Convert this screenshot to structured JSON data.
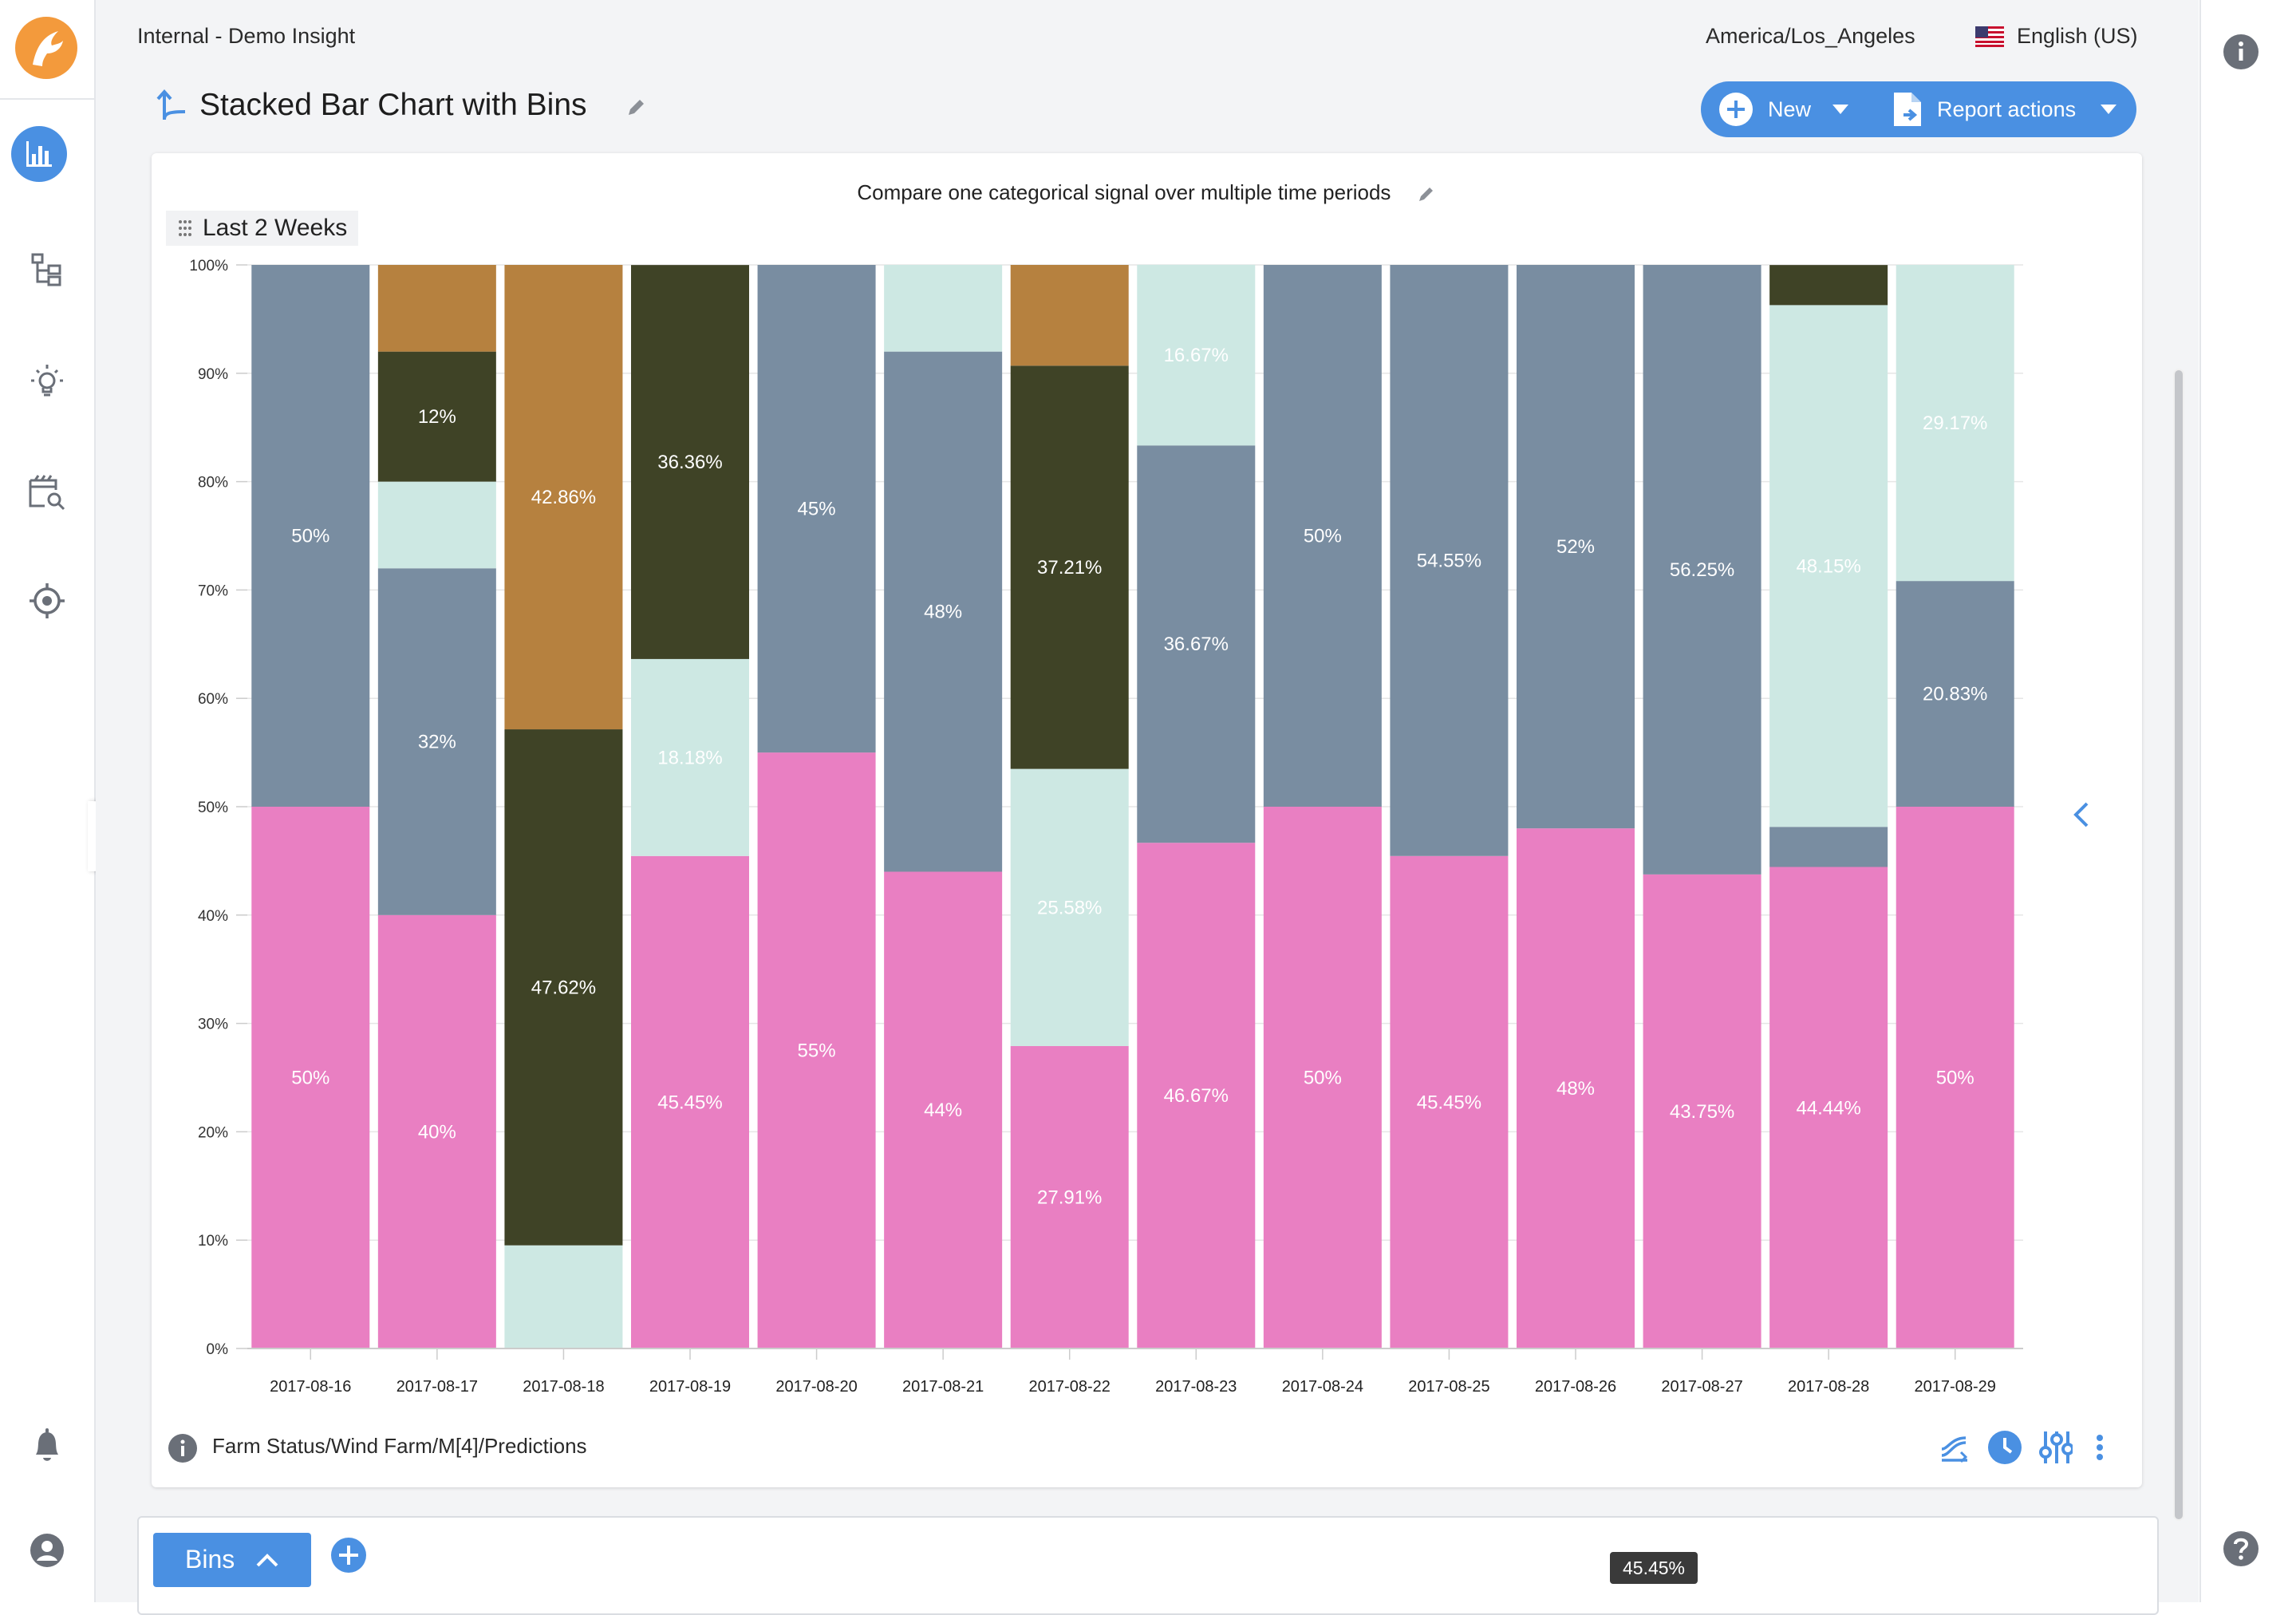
{
  "header": {
    "workbook": "Internal - Demo Insight",
    "timezone": "America/Los_Angeles",
    "language": "English (US)",
    "title": "Stacked Bar Chart with Bins",
    "new_label": "New",
    "report_actions_label": "Report actions"
  },
  "nav": {
    "items": [
      "analysis-icon",
      "tree-icon",
      "lightbulb-icon",
      "search-icon",
      "target-icon",
      "bell-icon",
      "user-icon"
    ]
  },
  "chart_panel": {
    "time_range": "Last 2 Weeks",
    "signal_name": "Farm Status/Wind Farm/M[4]/Predictions"
  },
  "chart_data": {
    "type": "bar",
    "stacked": true,
    "title": "Compare one categorical signal over multiple time periods",
    "xlabel": "",
    "ylabel": "",
    "ylim": [
      0,
      100
    ],
    "y_ticks": [
      "0%",
      "10%",
      "20%",
      "30%",
      "40%",
      "50%",
      "60%",
      "70%",
      "80%",
      "90%",
      "100%"
    ],
    "categories": [
      "2017-08-16",
      "2017-08-17",
      "2017-08-18",
      "2017-08-19",
      "2017-08-20",
      "2017-08-21",
      "2017-08-22",
      "2017-08-23",
      "2017-08-24",
      "2017-08-25",
      "2017-08-26",
      "2017-08-27",
      "2017-08-28",
      "2017-08-29"
    ],
    "series": [
      {
        "name": "pink",
        "color": "#e97fc2",
        "label_color": "#ffffff",
        "values": [
          50,
          40,
          0,
          45.45,
          55,
          44,
          27.91,
          46.67,
          50,
          45.45,
          48,
          43.75,
          44.44,
          50
        ]
      },
      {
        "name": "mint",
        "color": "#cde8e3",
        "label_color": "#ffffff",
        "values": [
          0,
          0,
          9.52,
          18.18,
          0,
          0,
          25.58,
          0,
          0,
          0,
          0,
          0,
          0,
          0
        ]
      },
      {
        "name": "dark",
        "color": "#3f4326",
        "label_color": "#ffffff",
        "values": [
          0,
          0,
          47.62,
          0,
          0,
          0,
          0,
          0,
          0,
          0,
          0,
          0,
          0,
          0
        ]
      },
      {
        "name": "slate",
        "color": "#798da1",
        "label_color": "#ffffff",
        "values": [
          50,
          32,
          0,
          0,
          45,
          48,
          0,
          36.67,
          50,
          54.55,
          52,
          56.25,
          3.7,
          20.83
        ]
      },
      {
        "name": "mint",
        "color": "#cde8e3",
        "label_color": "#ffffff",
        "values": [
          0,
          8,
          0,
          0,
          0,
          8,
          0,
          16.67,
          0,
          0,
          0,
          0,
          48.15,
          29.17
        ]
      },
      {
        "name": "dark",
        "color": "#3f4326",
        "label_color": "#ffffff",
        "values": [
          0,
          12,
          0,
          36.36,
          0,
          0,
          37.21,
          0,
          0,
          0,
          0,
          0,
          3.7,
          0
        ]
      },
      {
        "name": "bronze",
        "color": "#b6813f",
        "label_color": "#ffffff",
        "values": [
          0,
          8,
          42.86,
          0,
          0,
          0,
          9.3,
          0,
          0,
          0,
          0,
          0,
          0,
          0
        ]
      }
    ],
    "data_labels": [
      [
        "50%",
        "",
        "",
        "50%",
        "",
        "",
        ""
      ],
      [
        "40%",
        "",
        "",
        "32%",
        "",
        "12%",
        ""
      ],
      [
        "",
        "",
        "47.62%",
        "",
        "",
        "",
        "42.86%"
      ],
      [
        "45.45%",
        "18.18%",
        "",
        "",
        "",
        "36.36%",
        ""
      ],
      [
        "55%",
        "",
        "",
        "45%",
        "",
        "",
        ""
      ],
      [
        "44%",
        "",
        "",
        "48%",
        "",
        "",
        ""
      ],
      [
        "27.91%",
        "25.58%",
        "",
        "",
        "",
        "37.21%",
        ""
      ],
      [
        "46.67%",
        "",
        "",
        "36.67%",
        "16.67%",
        "",
        ""
      ],
      [
        "50%",
        "",
        "",
        "50%",
        "",
        "",
        ""
      ],
      [
        "45.45%",
        "",
        "",
        "54.55%",
        "",
        "",
        ""
      ],
      [
        "48%",
        "",
        "",
        "52%",
        "",
        "",
        ""
      ],
      [
        "43.75%",
        "",
        "",
        "56.25%",
        "",
        "",
        ""
      ],
      [
        "44.44%",
        "",
        "",
        "",
        "48.15%",
        "",
        ""
      ],
      [
        "50%",
        "",
        "",
        "20.83%",
        "29.17%",
        "",
        ""
      ]
    ]
  },
  "bottom": {
    "tab_label": "Bins",
    "tooltip_value": "45.45%"
  },
  "colors": {
    "accent": "#4a90e2",
    "logo": "#f39a3c"
  }
}
